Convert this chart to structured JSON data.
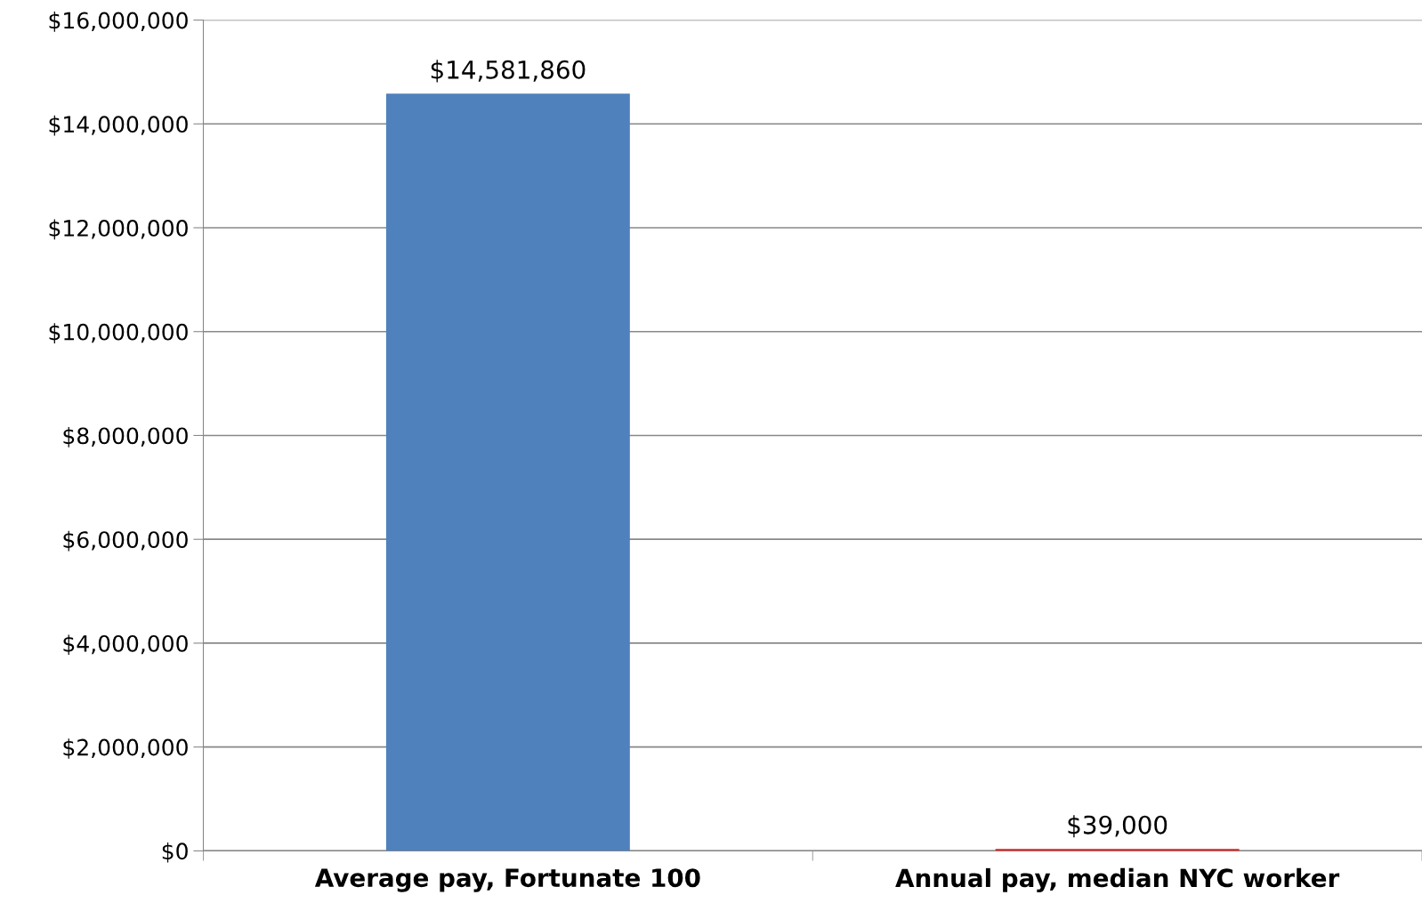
{
  "chart_data": {
    "type": "bar",
    "categories": [
      "Average pay, Fortunate 100",
      "Annual pay, median NYC worker"
    ],
    "values": [
      14581860,
      39000
    ],
    "colors": [
      "#4f81bd",
      "#e0201f"
    ],
    "value_labels": [
      "$14,581,860",
      "$39,000"
    ],
    "ylim": [
      0,
      16000000
    ],
    "yticks": [
      {
        "value": 0,
        "label": "$0"
      },
      {
        "value": 2000000,
        "label": "$2,000,000"
      },
      {
        "value": 4000000,
        "label": "$4,000,000"
      },
      {
        "value": 6000000,
        "label": "$6,000,000"
      },
      {
        "value": 8000000,
        "label": "$8,000,000"
      },
      {
        "value": 10000000,
        "label": "$10,000,000"
      },
      {
        "value": 12000000,
        "label": "$12,000,000"
      },
      {
        "value": 14000000,
        "label": "$14,000,000"
      },
      {
        "value": 16000000,
        "label": "$16,000,000"
      }
    ],
    "grid": "y",
    "legend": false
  }
}
